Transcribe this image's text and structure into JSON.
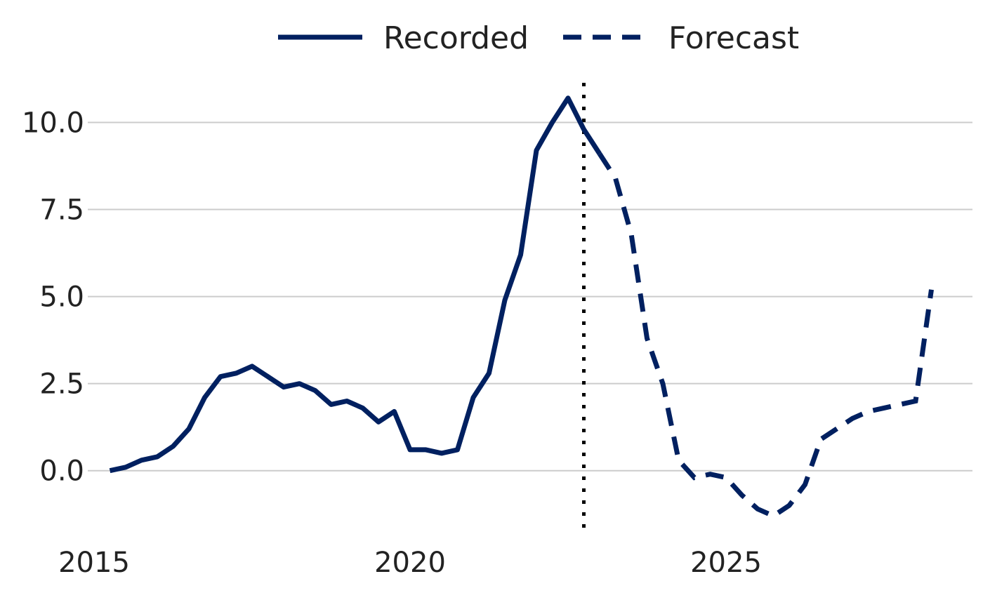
{
  "chart_data": {
    "type": "line",
    "title": "",
    "xlabel": "",
    "ylabel": "",
    "xlim": [
      2014.9,
      2028.9
    ],
    "ylim": [
      -1.9,
      11.3
    ],
    "x_ticks": [
      2015,
      2020,
      2025
    ],
    "x_tick_labels": [
      "2015",
      "2020",
      "2025"
    ],
    "y_ticks": [
      0.0,
      2.5,
      5.0,
      7.5,
      10.0
    ],
    "y_tick_labels": [
      "0.0",
      "2.5",
      "5.0",
      "7.5",
      "10.0"
    ],
    "grid": "horizontal",
    "legend_position": "top-center",
    "vertical_marker_x": 2022.75,
    "series": [
      {
        "name": "Recorded",
        "style": "solid",
        "color": "#002060",
        "x": [
          2015.25,
          2015.5,
          2015.75,
          2016.0,
          2016.25,
          2016.5,
          2016.75,
          2017.0,
          2017.25,
          2017.5,
          2017.75,
          2018.0,
          2018.25,
          2018.5,
          2018.75,
          2019.0,
          2019.25,
          2019.5,
          2019.75,
          2020.0,
          2020.25,
          2020.5,
          2020.75,
          2021.0,
          2021.25,
          2021.5,
          2021.75,
          2022.0,
          2022.25,
          2022.5,
          2022.75,
          2023.0
        ],
        "values": [
          0.0,
          0.1,
          0.3,
          0.4,
          0.7,
          1.2,
          2.1,
          2.7,
          2.8,
          3.0,
          2.7,
          2.4,
          2.5,
          2.3,
          1.9,
          2.0,
          1.8,
          1.4,
          1.7,
          0.6,
          0.6,
          0.5,
          0.6,
          2.1,
          2.8,
          4.9,
          6.2,
          9.2,
          10.0,
          10.7,
          9.8,
          9.1
        ]
      },
      {
        "name": "Forecast",
        "style": "dashed",
        "color": "#002060",
        "x": [
          2023.0,
          2023.25,
          2023.5,
          2023.75,
          2024.0,
          2024.25,
          2024.5,
          2024.75,
          2025.0,
          2025.25,
          2025.5,
          2025.75,
          2026.0,
          2026.25,
          2026.5,
          2026.75,
          2027.0,
          2027.25,
          2027.5,
          2027.75,
          2028.0,
          2028.25
        ],
        "values": [
          9.1,
          8.4,
          6.8,
          3.8,
          2.5,
          0.3,
          -0.2,
          -0.1,
          -0.2,
          -0.7,
          -1.1,
          -1.3,
          -1.0,
          -0.4,
          0.9,
          1.2,
          1.5,
          1.7,
          1.8,
          1.9,
          2.0,
          5.2
        ]
      }
    ]
  }
}
